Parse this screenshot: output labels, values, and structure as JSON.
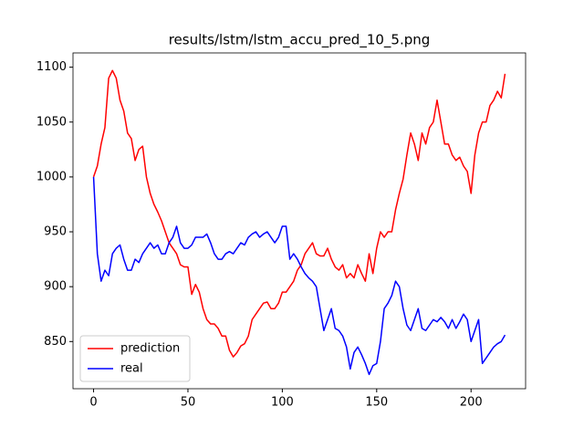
{
  "chart_data": {
    "type": "line",
    "title": "results/lstm/lstm_accu_pred_10_5.png",
    "x": [
      0,
      2,
      4,
      6,
      8,
      10,
      12,
      14,
      16,
      18,
      20,
      22,
      24,
      26,
      28,
      30,
      32,
      34,
      36,
      38,
      40,
      42,
      44,
      46,
      48,
      50,
      52,
      54,
      56,
      58,
      60,
      62,
      64,
      66,
      68,
      70,
      72,
      74,
      76,
      78,
      80,
      82,
      84,
      86,
      88,
      90,
      92,
      94,
      96,
      98,
      100,
      102,
      104,
      106,
      108,
      110,
      112,
      114,
      116,
      118,
      120,
      122,
      124,
      126,
      128,
      130,
      132,
      134,
      136,
      138,
      140,
      142,
      144,
      146,
      148,
      150,
      152,
      154,
      156,
      158,
      160,
      162,
      164,
      166,
      168,
      170,
      172,
      174,
      176,
      178,
      180,
      182,
      184,
      186,
      188,
      190,
      192,
      194,
      196,
      198,
      200,
      202,
      204,
      206,
      208,
      210,
      212,
      214,
      216,
      218
    ],
    "series": [
      {
        "name": "prediction",
        "color": "#ff0000",
        "values": [
          1000,
          1010,
          1030,
          1045,
          1090,
          1097,
          1090,
          1070,
          1060,
          1040,
          1035,
          1015,
          1025,
          1028,
          1000,
          985,
          975,
          968,
          960,
          950,
          940,
          935,
          930,
          920,
          918,
          918,
          893,
          902,
          895,
          880,
          870,
          866,
          866,
          862,
          855,
          855,
          842,
          836,
          840,
          846,
          848,
          855,
          870,
          875,
          880,
          885,
          886,
          880,
          880,
          885,
          895,
          895,
          900,
          905,
          915,
          920,
          930,
          935,
          940,
          930,
          928,
          928,
          935,
          925,
          918,
          915,
          920,
          908,
          912,
          908,
          920,
          912,
          905,
          930,
          912,
          935,
          950,
          945,
          950,
          950,
          970,
          985,
          998,
          1020,
          1040,
          1030,
          1015,
          1040,
          1030,
          1045,
          1050,
          1070,
          1050,
          1030,
          1030,
          1020,
          1015,
          1018,
          1010,
          1005,
          985,
          1020,
          1040,
          1050,
          1050,
          1065,
          1070,
          1078,
          1072,
          1094
        ]
      },
      {
        "name": "real",
        "color": "#0000ff",
        "values": [
          1000,
          930,
          905,
          915,
          910,
          930,
          935,
          938,
          925,
          915,
          915,
          925,
          922,
          930,
          935,
          940,
          935,
          938,
          930,
          930,
          940,
          945,
          955,
          940,
          935,
          935,
          938,
          945,
          945,
          945,
          948,
          940,
          930,
          925,
          925,
          930,
          932,
          930,
          935,
          940,
          938,
          945,
          948,
          950,
          945,
          948,
          950,
          945,
          940,
          945,
          955,
          955,
          925,
          930,
          925,
          918,
          912,
          908,
          905,
          900,
          880,
          860,
          870,
          880,
          862,
          860,
          855,
          845,
          825,
          840,
          845,
          838,
          830,
          820,
          828,
          830,
          850,
          880,
          885,
          892,
          905,
          900,
          880,
          865,
          860,
          870,
          880,
          862,
          860,
          865,
          870,
          868,
          872,
          868,
          862,
          870,
          862,
          868,
          875,
          870,
          850,
          860,
          870,
          830,
          835,
          840,
          845,
          848,
          850,
          856
        ]
      }
    ],
    "xlim": [
      -10.9,
      228.9
    ],
    "ylim": [
      807,
      1113
    ],
    "xticks": [
      0,
      50,
      100,
      150,
      200
    ],
    "yticks": [
      850,
      900,
      950,
      1000,
      1050,
      1100
    ],
    "grid": false,
    "legend": "lower left"
  }
}
